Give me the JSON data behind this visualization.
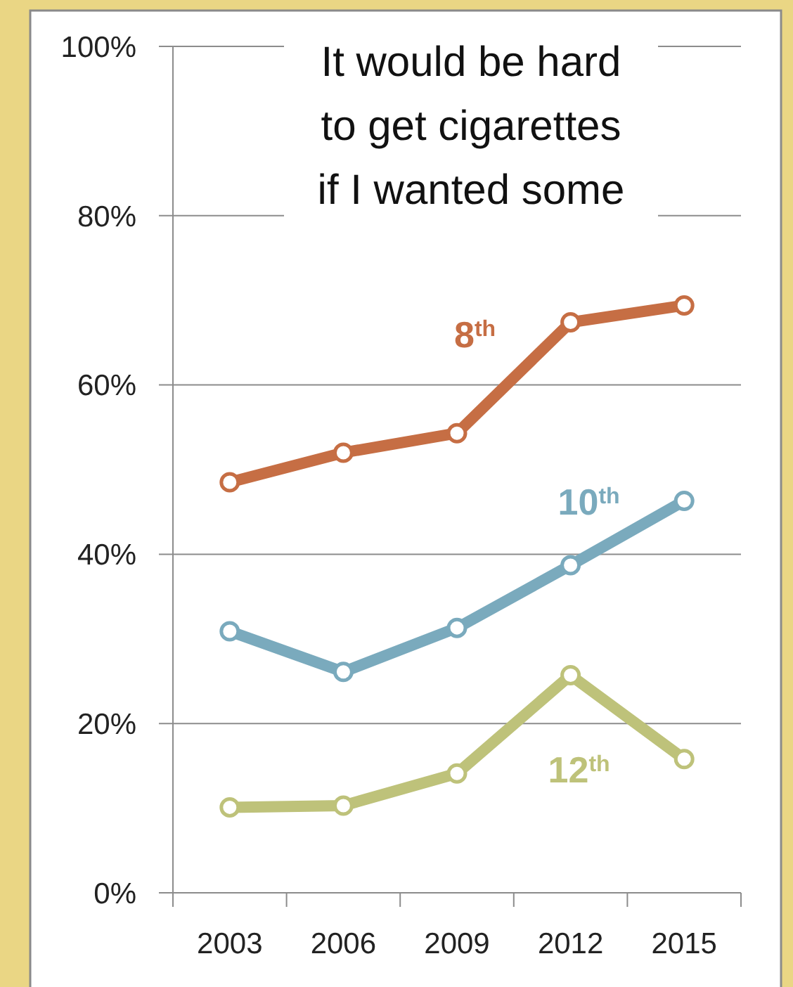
{
  "chart_data": {
    "type": "line",
    "title": "It would be hard\nto get cigarettes\nif I wanted some",
    "categories": [
      "2003",
      "2006",
      "2009",
      "2012",
      "2015"
    ],
    "series": [
      {
        "name": "8$^{th}$",
        "color": "#c66e44",
        "values": [
          48.5,
          52.0,
          54.3,
          67.4,
          69.4
        ]
      },
      {
        "name": "10$^{th}$",
        "color": "#7aaabd",
        "values": [
          30.9,
          26.1,
          31.3,
          38.7,
          46.3
        ]
      },
      {
        "name": "12$^{th}$",
        "color": "#bec27a",
        "values": [
          10.1,
          10.3,
          14.1,
          25.7,
          15.8
        ]
      }
    ],
    "ylim": [
      0,
      100
    ],
    "yticks": [
      {
        "value": 0,
        "label": "0%"
      },
      {
        "value": 20,
        "label": "20%"
      },
      {
        "value": 40,
        "label": "40%"
      },
      {
        "value": 60,
        "label": "60%"
      },
      {
        "value": 80,
        "label": "80%"
      },
      {
        "value": 100,
        "label": "100%"
      }
    ],
    "grid": "y",
    "marker": "circle"
  }
}
